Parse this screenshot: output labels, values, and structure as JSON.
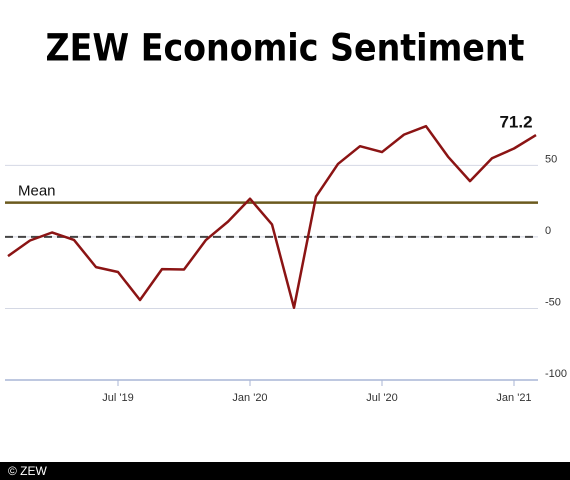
{
  "chart_data": {
    "type": "line",
    "title": "ZEW Economic Sentiment",
    "source": "© ZEW",
    "categories": [
      null,
      null,
      null,
      null,
      null,
      "Jul '19",
      null,
      null,
      null,
      null,
      null,
      "Jan '20",
      null,
      null,
      null,
      null,
      null,
      "Jul '20",
      null,
      null,
      null,
      null,
      null,
      "Jan '21",
      null
    ],
    "values": [
      -13.4,
      -2.5,
      3.1,
      -2.1,
      -21.1,
      -24.5,
      -44.1,
      -22.5,
      -22.8,
      -2.1,
      10.7,
      26.7,
      8.7,
      -49.5,
      28.2,
      51.0,
      63.4,
      59.3,
      71.5,
      77.4,
      56.1,
      39.0,
      55.0,
      61.8,
      71.2
    ],
    "color": "#8b1414",
    "mean": 24,
    "mean_label": "Mean",
    "mean_color": "#6b5a1e",
    "ylim": [
      -100,
      95
    ],
    "yticks": [
      -100,
      -50,
      0,
      50
    ],
    "grid": true
  }
}
